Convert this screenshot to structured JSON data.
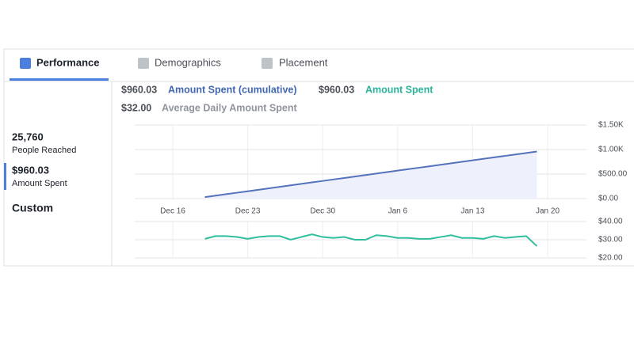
{
  "tabs": [
    "Performance",
    "Demographics",
    "Placement"
  ],
  "sidebar": {
    "reach": "25,760",
    "reach_label": "People Reached",
    "spent": "$960.03",
    "spent_label": "Amount Spent",
    "custom": "Custom"
  },
  "summary": {
    "cumulative": "$960.03",
    "spent": "$960.03",
    "average": "$32.00",
    "average_label": "Average Daily Amount Spent"
  },
  "chart_data": [
    {
      "type": "area",
      "categories": [
        "Dec 16",
        null,
        null,
        null,
        null,
        null,
        null,
        "Dec 23",
        null,
        null,
        null,
        null,
        null,
        null,
        "Dec 30",
        null,
        null,
        null,
        null,
        null,
        null,
        "Jan 6",
        null,
        null,
        null,
        null,
        null,
        null,
        "Jan 13",
        null,
        null,
        null,
        null,
        null,
        null,
        "Jan 20"
      ],
      "series": [
        {
          "name": "Amount Spent (cumulative)",
          "color": "#5572bd",
          "values": [
            null,
            null,
            null,
            30,
            60,
            90,
            120,
            150,
            180,
            210,
            240,
            270,
            300,
            330,
            360,
            390,
            420,
            450,
            480,
            510,
            540,
            570,
            600,
            630,
            660,
            690,
            720,
            750,
            780,
            810,
            840,
            870,
            900,
            930,
            960,
            null
          ]
        }
      ],
      "ylim": [
        0,
        1500
      ],
      "yticks": [
        {
          "value": 0,
          "label": "$0.00"
        },
        {
          "value": 500,
          "label": "$500.00"
        },
        {
          "value": 1000,
          "label": "$1.00K"
        },
        {
          "value": 1500,
          "label": "$1.50K"
        }
      ],
      "grid": true
    },
    {
      "type": "line",
      "series": [
        {
          "name": "Amount Spent",
          "color": "#2fbf9c",
          "values": [
            null,
            null,
            null,
            30.5,
            32,
            32,
            31.5,
            30.5,
            31.5,
            32,
            32,
            30,
            31.5,
            33,
            31.5,
            31,
            31.5,
            30,
            30,
            32.5,
            32,
            31,
            31,
            30.5,
            30.5,
            31.5,
            32.5,
            31,
            31,
            30.5,
            32,
            31,
            31.5,
            32,
            26.5,
            null
          ]
        }
      ],
      "ylim": [
        20,
        40
      ],
      "yticks": [
        {
          "value": 20,
          "label": "$20.00"
        },
        {
          "value": 30,
          "label": "$30.00"
        },
        {
          "value": 40,
          "label": "$40.00"
        }
      ],
      "grid": true
    }
  ]
}
